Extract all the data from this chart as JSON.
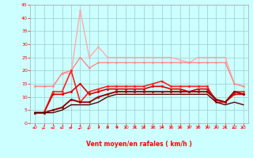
{
  "x": [
    0,
    1,
    2,
    3,
    4,
    5,
    6,
    7,
    8,
    9,
    10,
    11,
    12,
    13,
    14,
    15,
    16,
    17,
    18,
    19,
    20,
    21,
    22,
    23
  ],
  "series": [
    {
      "color": "#ffaaaa",
      "linewidth": 1.0,
      "marker": "o",
      "markersize": 1.5,
      "values": [
        14,
        14,
        14,
        19,
        19,
        43,
        25,
        29,
        25,
        25,
        25,
        25,
        25,
        25,
        25,
        25,
        24,
        23,
        25,
        25,
        25,
        25,
        15,
        14
      ]
    },
    {
      "color": "#ff8888",
      "linewidth": 1.0,
      "marker": "o",
      "markersize": 1.5,
      "values": [
        14,
        14,
        14,
        19,
        20,
        25,
        21,
        23,
        23,
        23,
        23,
        23,
        23,
        23,
        23,
        23,
        23,
        23,
        23,
        23,
        23,
        23,
        15,
        14
      ]
    },
    {
      "color": "#ff2222",
      "linewidth": 1.2,
      "marker": "o",
      "markersize": 1.8,
      "values": [
        4,
        4,
        12,
        12,
        20,
        8,
        12,
        13,
        14,
        14,
        14,
        14,
        14,
        15,
        16,
        14,
        14,
        14,
        14,
        14,
        8,
        8,
        12,
        12
      ]
    },
    {
      "color": "#dd0000",
      "linewidth": 1.2,
      "marker": "o",
      "markersize": 1.8,
      "values": [
        4,
        4,
        11,
        11,
        12,
        15,
        11,
        12,
        13,
        13,
        13,
        13,
        13,
        14,
        14,
        13,
        13,
        12,
        13,
        13,
        9,
        8,
        11,
        11
      ]
    },
    {
      "color": "#990000",
      "linewidth": 1.4,
      "marker": "o",
      "markersize": 1.8,
      "values": [
        4,
        4,
        5,
        6,
        9,
        8,
        8,
        10,
        11,
        12,
        12,
        12,
        12,
        12,
        12,
        12,
        12,
        12,
        12,
        12,
        9,
        8,
        12,
        11
      ]
    },
    {
      "color": "#550000",
      "linewidth": 1.0,
      "marker": null,
      "markersize": 0,
      "values": [
        4,
        4,
        4,
        5,
        7,
        7,
        7,
        8,
        10,
        11,
        11,
        11,
        11,
        11,
        11,
        11,
        11,
        11,
        11,
        11,
        8,
        7,
        8,
        7
      ]
    }
  ],
  "xlabel": "Vent moyen/en rafales ( km/h )",
  "xlim": [
    -0.5,
    23.5
  ],
  "ylim": [
    0,
    45
  ],
  "yticks": [
    0,
    5,
    10,
    15,
    20,
    25,
    30,
    35,
    40,
    45
  ],
  "xticks": [
    0,
    1,
    2,
    3,
    4,
    5,
    6,
    7,
    8,
    9,
    10,
    11,
    12,
    13,
    14,
    15,
    16,
    17,
    18,
    19,
    20,
    21,
    22,
    23
  ],
  "bg_color": "#ccffff",
  "grid_color": "#99cccc",
  "arrow_directions": [
    270,
    250,
    270,
    270,
    260,
    240,
    230,
    220,
    215,
    210,
    205,
    205,
    200,
    200,
    200,
    195,
    190,
    185,
    180,
    180,
    175,
    200,
    270,
    290
  ]
}
